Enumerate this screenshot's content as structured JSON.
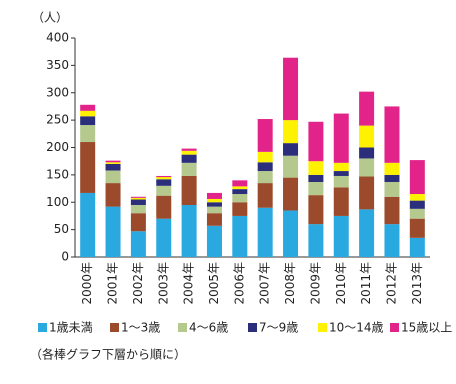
{
  "chart_data": {
    "type": "stacked_bar",
    "y_label": "（人）",
    "note": "（各棒グラフ下層から順に）",
    "categories": [
      "2000年",
      "2001年",
      "2002年",
      "2003年",
      "2004年",
      "2005年",
      "2006年",
      "2007年",
      "2008年",
      "2009年",
      "2010年",
      "2011年",
      "2012年",
      "2013年"
    ],
    "series": [
      {
        "name": "1歳未満",
        "color": "#29a9e0",
        "values": [
          117,
          92,
          47,
          70,
          95,
          57,
          75,
          90,
          85,
          60,
          75,
          87,
          60,
          35
        ]
      },
      {
        "name": "1～3歳",
        "color": "#9b4a2c",
        "values": [
          93,
          43,
          33,
          42,
          53,
          23,
          25,
          45,
          60,
          53,
          52,
          60,
          50,
          35
        ]
      },
      {
        "name": "4～6歳",
        "color": "#b5c98e",
        "values": [
          31,
          23,
          15,
          18,
          24,
          12,
          15,
          22,
          40,
          24,
          21,
          33,
          27,
          18
        ]
      },
      {
        "name": "7～9歳",
        "color": "#2b2e7a",
        "values": [
          16,
          12,
          10,
          12,
          15,
          8,
          9,
          16,
          23,
          13,
          9,
          20,
          13,
          15
        ]
      },
      {
        "name": "10～14歳",
        "color": "#fff200",
        "values": [
          10,
          3,
          3,
          4,
          7,
          6,
          5,
          19,
          42,
          25,
          15,
          40,
          22,
          12
        ]
      },
      {
        "name": "15歳以上",
        "color": "#e2248a",
        "values": [
          11,
          3,
          2,
          2,
          4,
          11,
          11,
          60,
          114,
          72,
          90,
          62,
          103,
          62
        ]
      }
    ],
    "ylim": [
      0,
      400
    ],
    "yticks": [
      0,
      50,
      100,
      150,
      200,
      250,
      300,
      350,
      400
    ]
  }
}
